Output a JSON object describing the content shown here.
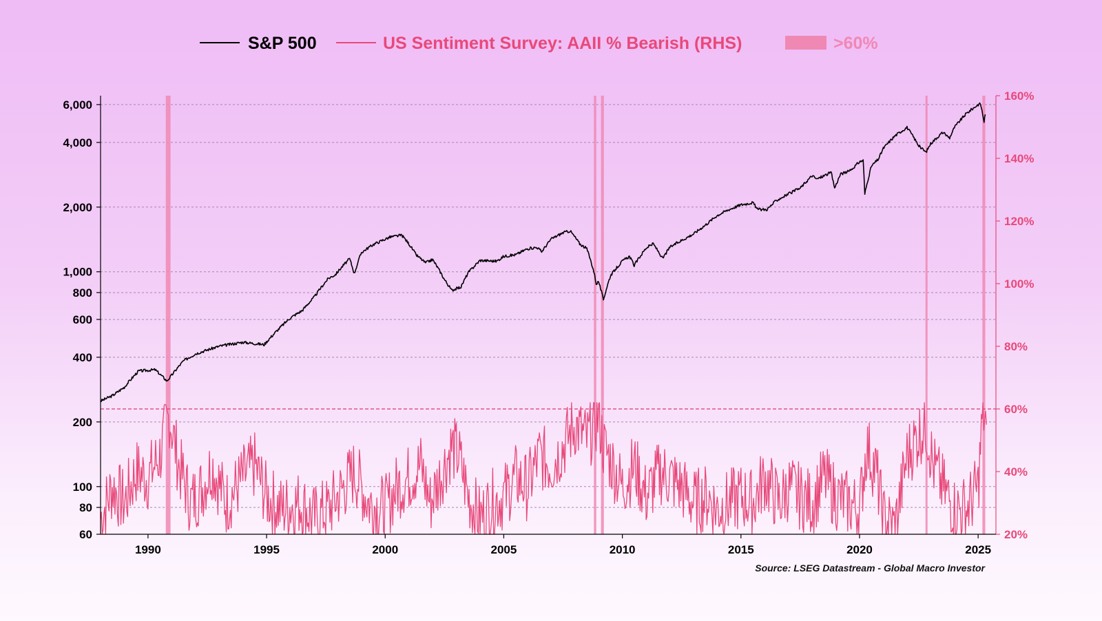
{
  "chart_data": {
    "type": "line",
    "title": "",
    "source": "Source: LSEG Datastream - Global Macro Investor",
    "legend": {
      "placement": "top-center",
      "entries": [
        {
          "label": "S&P 500",
          "kind": "line",
          "color": "#000000"
        },
        {
          "label": "US Sentiment Survey: AAII % Bearish (RHS)",
          "kind": "line",
          "color": "#e8497a"
        },
        {
          "label": ">60%",
          "kind": "band",
          "color": "#f088b4"
        }
      ]
    },
    "x_axis": {
      "range": [
        1988.0,
        2025.75
      ],
      "ticks": [
        1990,
        1995,
        2000,
        2005,
        2010,
        2015,
        2020,
        2025
      ],
      "tick_labels": [
        "1990",
        "1995",
        "2000",
        "2005",
        "2010",
        "2015",
        "2020",
        "2025"
      ]
    },
    "y_left": {
      "scale": "log",
      "range": [
        60,
        6600
      ],
      "ticks": [
        60,
        80,
        100,
        200,
        400,
        600,
        800,
        1000,
        2000,
        4000,
        6000
      ],
      "tick_labels": [
        "60",
        "80",
        "100",
        "200",
        "400",
        "600",
        "800",
        "1,000",
        "2,000",
        "4,000",
        "6,000"
      ]
    },
    "y_right": {
      "scale": "linear",
      "range": [
        20,
        160
      ],
      "ticks": [
        20,
        40,
        60,
        80,
        100,
        120,
        140,
        160
      ],
      "tick_labels": [
        "20%",
        "40%",
        "60%",
        "80%",
        "100%",
        "120%",
        "140%",
        "160%"
      ]
    },
    "grid": true,
    "threshold_line": {
      "value": 60,
      "axis": "right",
      "style": "dashed",
      "color": "#d93a6b"
    },
    "highlight_bands": [
      [
        1990.75,
        1990.95
      ],
      [
        2008.8,
        2008.9
      ],
      [
        2009.1,
        2009.22
      ],
      [
        2022.78,
        2022.86
      ],
      [
        2025.18,
        2025.3
      ]
    ],
    "series": [
      {
        "name": "S&P 500",
        "axis": "left",
        "color": "#000000",
        "x": [
          1988.0,
          1988.5,
          1989.0,
          1989.6,
          1990.3,
          1990.8,
          1991.0,
          1991.5,
          1992.0,
          1993.0,
          1994.0,
          1994.9,
          1995.5,
          1996.0,
          1996.5,
          1997.0,
          1997.6,
          1997.9,
          1998.5,
          1998.7,
          1999.0,
          1999.5,
          2000.2,
          2000.7,
          2001.0,
          2001.3,
          2001.7,
          2002.0,
          2002.5,
          2002.8,
          2003.2,
          2003.5,
          2004.0,
          2004.7,
          2005.0,
          2005.5,
          2006.0,
          2006.4,
          2006.6,
          2007.0,
          2007.5,
          2007.8,
          2008.2,
          2008.5,
          2008.8,
          2008.9,
          2009.0,
          2009.2,
          2009.5,
          2010.0,
          2010.3,
          2010.5,
          2011.0,
          2011.3,
          2011.7,
          2012.0,
          2012.5,
          2013.0,
          2013.5,
          2014.0,
          2014.5,
          2015.0,
          2015.5,
          2015.7,
          2016.1,
          2016.5,
          2017.0,
          2017.5,
          2018.0,
          2018.2,
          2018.8,
          2018.95,
          2019.2,
          2019.6,
          2020.0,
          2020.15,
          2020.22,
          2020.5,
          2020.8,
          2021.0,
          2021.5,
          2022.0,
          2022.5,
          2022.8,
          2023.0,
          2023.5,
          2023.8,
          2024.0,
          2024.5,
          2025.0,
          2025.1,
          2025.25,
          2025.3
        ],
        "values": [
          250,
          265,
          290,
          345,
          350,
          310,
          330,
          385,
          415,
          450,
          470,
          458,
          540,
          610,
          660,
          760,
          930,
          970,
          1150,
          980,
          1230,
          1340,
          1450,
          1480,
          1350,
          1200,
          1100,
          1140,
          920,
          820,
          850,
          990,
          1130,
          1120,
          1180,
          1200,
          1280,
          1300,
          1240,
          1420,
          1520,
          1550,
          1350,
          1280,
          1000,
          880,
          900,
          740,
          960,
          1120,
          1180,
          1070,
          1290,
          1350,
          1150,
          1300,
          1400,
          1500,
          1650,
          1830,
          1950,
          2050,
          2100,
          1950,
          1950,
          2150,
          2300,
          2450,
          2800,
          2700,
          2900,
          2450,
          2850,
          2950,
          3250,
          3300,
          2300,
          3100,
          3350,
          3750,
          4300,
          4700,
          3850,
          3600,
          3950,
          4450,
          4200,
          4700,
          5450,
          6000,
          6050,
          5000,
          5400
        ]
      },
      {
        "name": "US Sentiment Survey: AAII % Bearish (RHS)",
        "axis": "right",
        "color": "#e8497a",
        "x": [
          1988.0,
          1988.5,
          1989.0,
          1989.5,
          1990.0,
          1990.5,
          1990.9,
          1991.3,
          1991.8,
          1992.3,
          1992.7,
          1993.3,
          1994.0,
          1994.5,
          1995.0,
          1995.6,
          1996.4,
          1997.0,
          1997.6,
          1998.0,
          1998.7,
          1999.3,
          2000.0,
          2000.5,
          2001.0,
          2001.5,
          2001.9,
          2002.4,
          2002.8,
          2003.1,
          2003.5,
          2004.0,
          2004.5,
          2005.0,
          2005.5,
          2006.0,
          2006.5,
          2007.0,
          2007.5,
          2008.0,
          2008.5,
          2009.0,
          2009.2,
          2009.6,
          2010.0,
          2010.5,
          2011.0,
          2011.6,
          2012.0,
          2012.5,
          2013.0,
          2013.6,
          2014.0,
          2014.5,
          2015.0,
          2015.5,
          2016.0,
          2016.6,
          2017.0,
          2017.5,
          2018.0,
          2018.5,
          2019.0,
          2019.5,
          2020.0,
          2020.3,
          2020.7,
          2021.0,
          2021.5,
          2022.0,
          2022.5,
          2022.8,
          2023.1,
          2023.5,
          2024.0,
          2024.5,
          2025.0,
          2025.2,
          2025.35
        ],
        "values": [
          25,
          35,
          30,
          40,
          38,
          45,
          58,
          42,
          30,
          35,
          42,
          30,
          38,
          42,
          32,
          28,
          30,
          25,
          28,
          32,
          40,
          30,
          28,
          35,
          38,
          42,
          30,
          40,
          48,
          45,
          32,
          25,
          30,
          32,
          38,
          35,
          45,
          42,
          48,
          55,
          50,
          58,
          48,
          42,
          35,
          42,
          32,
          40,
          38,
          35,
          30,
          32,
          28,
          30,
          32,
          30,
          38,
          30,
          35,
          32,
          30,
          38,
          32,
          30,
          28,
          48,
          40,
          25,
          22,
          45,
          52,
          55,
          42,
          35,
          28,
          28,
          35,
          60,
          55
        ]
      }
    ]
  }
}
